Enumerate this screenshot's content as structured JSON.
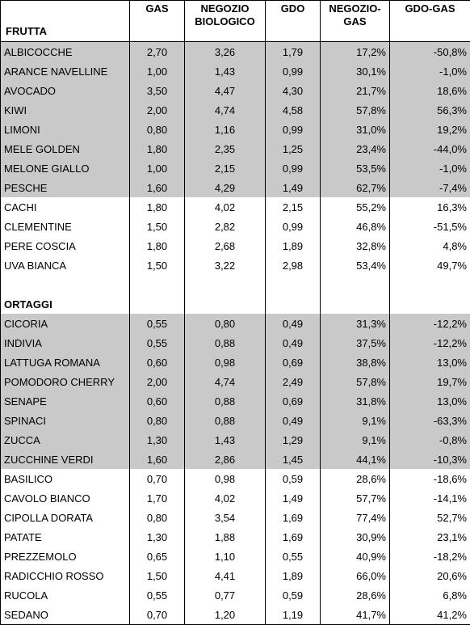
{
  "columns": {
    "label": "FRUTTA",
    "gas": "GAS",
    "bio": "NEGOZIO BIOLOGICO",
    "gdo": "GDO",
    "negozio_gas": "NEGOZIO-GAS",
    "gdo_gas": "GDO-GAS"
  },
  "section2": "ORTAGGI",
  "rows": [
    {
      "shaded": true,
      "label": "ALBICOCCHE",
      "gas": "2,70",
      "bio": "3,26",
      "gdo": "1,79",
      "ng": "17,2%",
      "gg": "-50,8%"
    },
    {
      "shaded": true,
      "label": "ARANCE NAVELLINE",
      "gas": "1,00",
      "bio": "1,43",
      "gdo": "0,99",
      "ng": "30,1%",
      "gg": "-1,0%"
    },
    {
      "shaded": true,
      "label": "AVOCADO",
      "gas": "3,50",
      "bio": "4,47",
      "gdo": "4,30",
      "ng": "21,7%",
      "gg": "18,6%"
    },
    {
      "shaded": true,
      "label": "KIWI",
      "gas": "2,00",
      "bio": "4,74",
      "gdo": "4,58",
      "ng": "57,8%",
      "gg": "56,3%"
    },
    {
      "shaded": true,
      "label": "LIMONI",
      "gas": "0,80",
      "bio": "1,16",
      "gdo": "0,99",
      "ng": "31,0%",
      "gg": "19,2%"
    },
    {
      "shaded": true,
      "label": "MELE GOLDEN",
      "gas": "1,80",
      "bio": "2,35",
      "gdo": "1,25",
      "ng": "23,4%",
      "gg": "-44,0%"
    },
    {
      "shaded": true,
      "label": "MELONE GIALLO",
      "gas": "1,00",
      "bio": "2,15",
      "gdo": "0,99",
      "ng": "53,5%",
      "gg": "-1,0%"
    },
    {
      "shaded": true,
      "label": "PESCHE",
      "gas": "1,60",
      "bio": "4,29",
      "gdo": "1,49",
      "ng": "62,7%",
      "gg": "-7,4%"
    },
    {
      "shaded": false,
      "label": "CACHI",
      "gas": "1,80",
      "bio": "4,02",
      "gdo": "2,15",
      "ng": "55,2%",
      "gg": "16,3%"
    },
    {
      "shaded": false,
      "label": "CLEMENTINE",
      "gas": "1,50",
      "bio": "2,82",
      "gdo": "0,99",
      "ng": "46,8%",
      "gg": "-51,5%"
    },
    {
      "shaded": false,
      "label": "PERE COSCIA",
      "gas": "1,80",
      "bio": "2,68",
      "gdo": "1,89",
      "ng": "32,8%",
      "gg": "4,8%"
    },
    {
      "shaded": false,
      "label": "UVA BIANCA",
      "gas": "1,50",
      "bio": "3,22",
      "gdo": "2,98",
      "ng": "53,4%",
      "gg": "49,7%"
    },
    {
      "section": "ORTAGGI"
    },
    {
      "shaded": true,
      "label": "CICORIA",
      "gas": "0,55",
      "bio": "0,80",
      "gdo": "0,49",
      "ng": "31,3%",
      "gg": "-12,2%"
    },
    {
      "shaded": true,
      "label": "INDIVIA",
      "gas": "0,55",
      "bio": "0,88",
      "gdo": "0,49",
      "ng": "37,5%",
      "gg": "-12,2%"
    },
    {
      "shaded": true,
      "label": "LATTUGA ROMANA",
      "gas": "0,60",
      "bio": "0,98",
      "gdo": "0,69",
      "ng": "38,8%",
      "gg": "13,0%"
    },
    {
      "shaded": true,
      "label": "POMODORO CHERRY",
      "gas": "2,00",
      "bio": "4,74",
      "gdo": "2,49",
      "ng": "57,8%",
      "gg": "19,7%"
    },
    {
      "shaded": true,
      "label": "SENAPE",
      "gas": "0,60",
      "bio": "0,88",
      "gdo": "0,69",
      "ng": "31,8%",
      "gg": "13,0%"
    },
    {
      "shaded": true,
      "label": "SPINACI",
      "gas": "0,80",
      "bio": "0,88",
      "gdo": "0,49",
      "ng": "9,1%",
      "gg": "-63,3%"
    },
    {
      "shaded": true,
      "label": "ZUCCA",
      "gas": "1,30",
      "bio": "1,43",
      "gdo": "1,29",
      "ng": "9,1%",
      "gg": "-0,8%"
    },
    {
      "shaded": true,
      "label": "ZUCCHINE VERDI",
      "gas": "1,60",
      "bio": "2,86",
      "gdo": "1,45",
      "ng": "44,1%",
      "gg": "-10,3%"
    },
    {
      "shaded": false,
      "label": "BASILICO",
      "gas": "0,70",
      "bio": "0,98",
      "gdo": "0,59",
      "ng": "28,6%",
      "gg": "-18,6%"
    },
    {
      "shaded": false,
      "label": "CAVOLO BIANCO",
      "gas": "1,70",
      "bio": "4,02",
      "gdo": "1,49",
      "ng": "57,7%",
      "gg": "-14,1%"
    },
    {
      "shaded": false,
      "label": "CIPOLLA DORATA",
      "gas": "0,80",
      "bio": "3,54",
      "gdo": "1,69",
      "ng": "77,4%",
      "gg": "52,7%"
    },
    {
      "shaded": false,
      "label": "PATATE",
      "gas": "1,30",
      "bio": "1,88",
      "gdo": "1,69",
      "ng": "30,9%",
      "gg": "23,1%"
    },
    {
      "shaded": false,
      "label": "PREZZEMOLO",
      "gas": "0,65",
      "bio": "1,10",
      "gdo": "0,55",
      "ng": "40,9%",
      "gg": "-18,2%"
    },
    {
      "shaded": false,
      "label": "RADICCHIO ROSSO",
      "gas": "1,50",
      "bio": "4,41",
      "gdo": "1,89",
      "ng": "66,0%",
      "gg": "20,6%"
    },
    {
      "shaded": false,
      "label": "RUCOLA",
      "gas": "0,55",
      "bio": "0,77",
      "gdo": "0,59",
      "ng": "28,6%",
      "gg": "6,8%"
    },
    {
      "shaded": false,
      "label": "SEDANO",
      "gas": "0,70",
      "bio": "1,20",
      "gdo": "1,19",
      "ng": "41,7%",
      "gg": "41,2%"
    }
  ]
}
